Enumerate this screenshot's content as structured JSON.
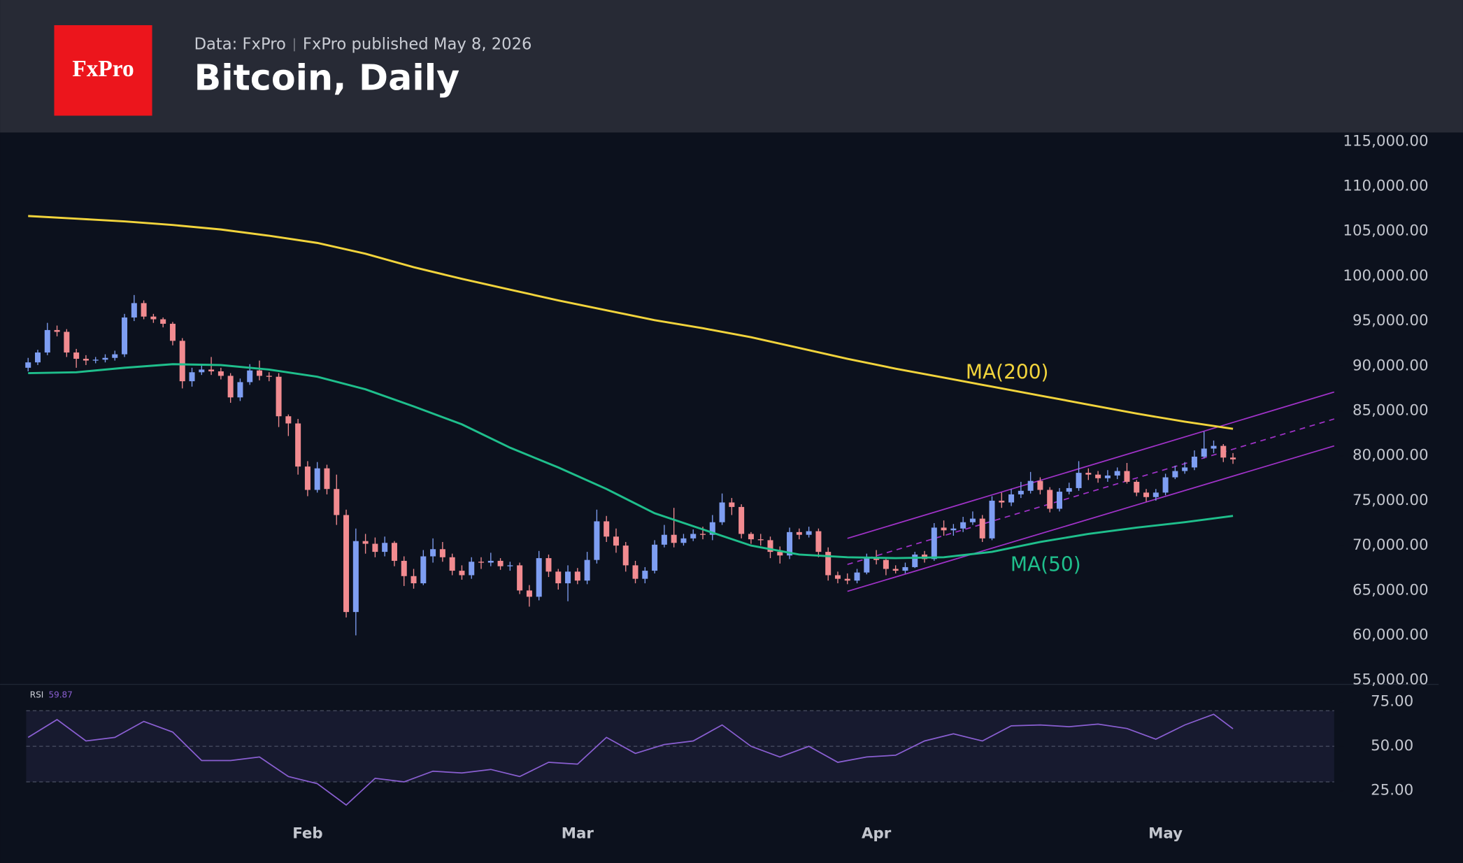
{
  "chart_data": {
    "type": "candlestick",
    "logo": "FxPro",
    "source": "Data: FxPro",
    "published": "FxPro published May 8, 2026",
    "title": "Bitcoin, Daily",
    "up_color": "#7e9ef2",
    "down_color": "#f28b90",
    "xlim": [
      -0.2,
      135.5
    ],
    "xticks": [
      {
        "value": 29,
        "label": "Feb"
      },
      {
        "value": 57,
        "label": "Mar"
      },
      {
        "value": 88,
        "label": "Apr"
      },
      {
        "value": 118,
        "label": "May"
      }
    ],
    "ylim": [
      54600,
      116000
    ],
    "yticks": [
      {
        "value": 55000,
        "label": "55,000.00"
      },
      {
        "value": 60000,
        "label": "60,000.00"
      },
      {
        "value": 65000,
        "label": "65,000.00"
      },
      {
        "value": 70000,
        "label": "70,000.00"
      },
      {
        "value": 75000,
        "label": "75,000.00"
      },
      {
        "value": 80000,
        "label": "80,000.00"
      },
      {
        "value": 85000,
        "label": "85,000.00"
      },
      {
        "value": 90000,
        "label": "90,000.00"
      },
      {
        "value": 95000,
        "label": "95,000.00"
      },
      {
        "value": 100000,
        "label": "100,000.00"
      },
      {
        "value": 105000,
        "label": "105,000.00"
      },
      {
        "value": 110000,
        "label": "110,000.00"
      },
      {
        "value": 115000,
        "label": "115,000.00"
      }
    ],
    "open": [
      89800,
      90400,
      91500,
      94000,
      93800,
      91500,
      90800,
      90600,
      90700,
      90900,
      91300,
      95400,
      97000,
      95500,
      95200,
      94700,
      92800,
      88300,
      89300,
      89600,
      89400,
      88900,
      86500,
      88200,
      89500,
      88900,
      88800,
      84400,
      83600,
      78800,
      76200,
      78600,
      76300,
      73400,
      62600,
      70500,
      70200,
      69300,
      70300,
      68300,
      66600,
      65800,
      68800,
      69600,
      68700,
      67200,
      66700,
      68200,
      68100,
      68300,
      67700,
      67800,
      65000,
      64300,
      68600,
      67100,
      65800,
      67100,
      66100,
      68400,
      72700,
      71000,
      70000,
      67800,
      66300,
      67200,
      70100,
      71200,
      70300,
      70800,
      71300,
      71200,
      72600,
      74800,
      74300,
      71300,
      70700,
      70600,
      69300,
      68900,
      71500,
      71200,
      71600,
      69300,
      66700,
      66300,
      66100,
      67000,
      68600,
      68400,
      67400,
      67200,
      67600,
      69000,
      68500,
      72000,
      71700,
      71900,
      72600,
      73000,
      70800,
      75000,
      74800,
      75700,
      76100,
      77200,
      76200,
      74100,
      76000,
      76400,
      78100,
      77900,
      77500,
      77800,
      78300,
      77100,
      75900,
      75400,
      75900,
      77600,
      78300,
      78700,
      79900,
      80800,
      81100,
      79800
    ],
    "high": [
      90900,
      91800,
      94800,
      94500,
      94100,
      91900,
      91200,
      91000,
      91300,
      91700,
      95800,
      97900,
      97300,
      95800,
      95400,
      94900,
      93100,
      89800,
      90100,
      91000,
      89800,
      89200,
      88600,
      90200,
      90600,
      89300,
      89200,
      84600,
      84100,
      79400,
      79300,
      79000,
      77900,
      74000,
      71900,
      71300,
      70900,
      71000,
      70500,
      68800,
      67400,
      69500,
      70800,
      70400,
      69100,
      67800,
      68700,
      68700,
      69200,
      68600,
      68200,
      68100,
      65600,
      69400,
      69000,
      67400,
      67800,
      67500,
      69300,
      74000,
      73300,
      71900,
      70400,
      68300,
      67600,
      70600,
      72300,
      74200,
      71300,
      71800,
      72100,
      73400,
      75800,
      75300,
      74600,
      71500,
      71300,
      71000,
      69900,
      72000,
      71900,
      72100,
      71900,
      69800,
      67100,
      66900,
      67400,
      69100,
      69500,
      68700,
      67800,
      68100,
      69300,
      69400,
      72500,
      72800,
      72400,
      73200,
      73800,
      73400,
      75500,
      75900,
      76300,
      77100,
      78200,
      77600,
      76500,
      76400,
      77000,
      79400,
      78600,
      78300,
      78400,
      78700,
      79200,
      77300,
      76300,
      76300,
      78000,
      78900,
      79300,
      80600,
      82700,
      81700,
      81300,
      80300
    ],
    "low": [
      89400,
      90100,
      91200,
      93300,
      91000,
      89800,
      90100,
      90300,
      90400,
      90600,
      91000,
      95000,
      95200,
      94800,
      94300,
      92300,
      87500,
      87700,
      89000,
      89000,
      88500,
      85900,
      86100,
      87900,
      88400,
      88300,
      83200,
      82200,
      77900,
      75500,
      75900,
      75700,
      72300,
      62000,
      60000,
      69100,
      68700,
      68800,
      67700,
      65500,
      65200,
      65600,
      68100,
      68200,
      66700,
      66200,
      66300,
      67400,
      67700,
      67300,
      67200,
      64600,
      63200,
      63900,
      66500,
      65100,
      63800,
      65700,
      65700,
      68000,
      70400,
      69200,
      67100,
      65800,
      65800,
      66900,
      69800,
      69800,
      70000,
      70500,
      70700,
      70600,
      72300,
      73400,
      70800,
      70200,
      70000,
      68600,
      68000,
      68500,
      70700,
      70900,
      68700,
      66100,
      65800,
      65700,
      65800,
      66800,
      67900,
      66700,
      66900,
      66900,
      67500,
      68100,
      68300,
      71100,
      71100,
      71500,
      72300,
      70400,
      70600,
      74200,
      74400,
      75300,
      75800,
      75700,
      73700,
      73800,
      75700,
      76100,
      77300,
      77000,
      77100,
      77400,
      76900,
      75500,
      74900,
      75000,
      75600,
      77400,
      78000,
      78400,
      79700,
      80300,
      79300,
      79100
    ],
    "close": [
      90400,
      91500,
      94000,
      93800,
      91500,
      90800,
      90600,
      90700,
      90900,
      91300,
      95400,
      97000,
      95500,
      95200,
      94700,
      92800,
      88300,
      89300,
      89600,
      89400,
      88900,
      86500,
      88200,
      89500,
      88900,
      88800,
      84400,
      83600,
      78800,
      76200,
      78600,
      76300,
      73400,
      62600,
      70500,
      70200,
      69300,
      70300,
      68300,
      66600,
      65800,
      68800,
      69600,
      68700,
      67200,
      66700,
      68200,
      68100,
      68300,
      67700,
      67800,
      65000,
      64300,
      68600,
      67100,
      65800,
      67100,
      66100,
      68400,
      72700,
      71000,
      70000,
      67800,
      66300,
      67200,
      70100,
      71200,
      70300,
      70800,
      71300,
      71200,
      72600,
      74800,
      74300,
      71300,
      70700,
      70600,
      69300,
      68900,
      71500,
      71200,
      71600,
      69300,
      66700,
      66300,
      66100,
      67000,
      68600,
      68400,
      67400,
      67200,
      67600,
      69000,
      68500,
      72000,
      71700,
      71900,
      72600,
      73000,
      70800,
      75000,
      74800,
      75700,
      76100,
      77200,
      76200,
      74100,
      76000,
      76400,
      78100,
      77900,
      77500,
      77800,
      78300,
      77100,
      75900,
      75400,
      75900,
      77600,
      78300,
      78700,
      79900,
      80800,
      81100,
      79800,
      79600
    ],
    "lines": [
      {
        "name": "MA(200)",
        "color": "#f2d43c",
        "x": [
          0,
          5,
          10,
          15,
          20,
          25,
          30,
          35,
          40,
          45,
          50,
          55,
          60,
          65,
          70,
          75,
          80,
          85,
          90,
          95,
          100,
          105,
          110,
          115,
          120,
          125
        ],
        "values": [
          106700,
          106400,
          106100,
          105700,
          105200,
          104500,
          103700,
          102500,
          101000,
          99700,
          98500,
          97300,
          96200,
          95100,
          94200,
          93200,
          92000,
          90800,
          89700,
          88700,
          87700,
          86700,
          85700,
          84700,
          83800,
          83000
        ]
      },
      {
        "name": "MA(50)",
        "color": "#1fbf8c",
        "x": [
          0,
          5,
          10,
          15,
          20,
          25,
          30,
          35,
          40,
          45,
          50,
          55,
          60,
          65,
          70,
          75,
          80,
          85,
          90,
          95,
          100,
          105,
          110,
          115,
          120,
          125
        ],
        "values": [
          89200,
          89300,
          89800,
          90200,
          90100,
          89600,
          88800,
          87400,
          85500,
          83500,
          80900,
          78700,
          76300,
          73600,
          71800,
          70000,
          69000,
          68700,
          68600,
          68700,
          69300,
          70400,
          71300,
          72000,
          72600,
          73300
        ]
      }
    ],
    "channel": {
      "color": "#a032c8",
      "x": [
        85,
        135.5
      ],
      "upper": [
        70800,
        87100
      ],
      "middle": [
        67900,
        84100
      ],
      "lower": [
        64900,
        81100
      ]
    },
    "rsi": {
      "label": "RSI",
      "color": "#8a5fd2",
      "ylim": [
        8,
        83
      ],
      "yticks": [
        {
          "value": 25,
          "label": "25.00"
        },
        {
          "value": 50,
          "label": "50.00"
        },
        {
          "value": 75,
          "label": "75.00"
        }
      ],
      "levels": [
        30,
        50,
        70
      ],
      "x": [
        0,
        3,
        6,
        9,
        12,
        15,
        18,
        21,
        24,
        27,
        30,
        33,
        36,
        39,
        42,
        45,
        48,
        51,
        54,
        57,
        60,
        63,
        66,
        69,
        72,
        75,
        78,
        81,
        84,
        87,
        90,
        93,
        96,
        99,
        102,
        105,
        108,
        111,
        114,
        117,
        120,
        123,
        125
      ],
      "values": [
        55,
        65,
        53,
        55,
        64,
        58,
        42,
        42,
        44,
        33,
        29,
        17,
        32,
        30,
        36,
        35,
        37,
        33,
        41,
        40,
        55,
        46,
        51,
        53,
        62,
        50,
        44,
        50,
        41,
        44,
        45,
        53,
        57,
        53,
        61.5,
        62,
        61,
        62.5,
        60,
        54,
        62,
        68,
        59.87
      ]
    }
  }
}
